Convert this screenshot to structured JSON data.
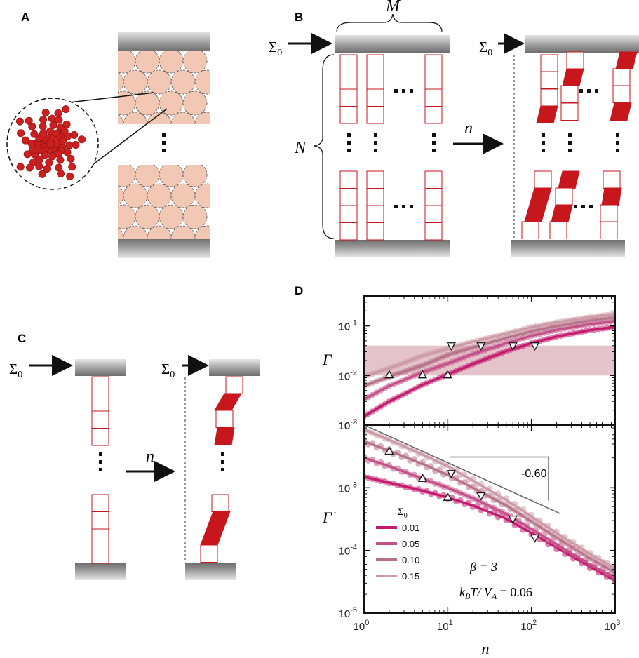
{
  "panels": {
    "A": {
      "letter": "A"
    },
    "B": {
      "letter": "B",
      "label_M": "M",
      "label_N": "N",
      "label_sigma": "Σ",
      "label_sigma_sub": "0",
      "label_n": "n",
      "dots": "···",
      "vdots": "⋮"
    },
    "C": {
      "letter": "C",
      "label_sigma": "Σ",
      "label_sigma_sub": "0",
      "label_n": "n",
      "vdots": "⋮"
    },
    "D": {
      "letter": "D"
    }
  },
  "colors": {
    "block_red": "#c8161d",
    "particle_fill": "#f2c7b3",
    "plate_dark": "#7a7a7a",
    "plate_light": "#e0e0e0",
    "band": "#d9a9b5",
    "series": [
      "#c21a6d",
      "#c45088",
      "#b77189",
      "#cc9aa6"
    ]
  },
  "chart_data": [
    {
      "type": "line",
      "panel": "D-top",
      "ylabel": "Γ",
      "xscale": "log",
      "yscale": "log",
      "xlim": [
        1,
        1000
      ],
      "ylim": [
        0.001,
        0.4
      ],
      "yticks": [
        {
          "base": "10",
          "exp": "-3"
        },
        {
          "base": "10",
          "exp": "-2"
        },
        {
          "base": "10",
          "exp": "-1"
        }
      ],
      "band": [
        0.01,
        0.04
      ],
      "series": [
        {
          "name": "0.01",
          "x": [
            1,
            2,
            5,
            10,
            20,
            50,
            100,
            200,
            500,
            1000
          ],
          "y": [
            0.0015,
            0.003,
            0.0065,
            0.0105,
            0.017,
            0.031,
            0.045,
            0.061,
            0.082,
            0.095
          ]
        },
        {
          "name": "0.05",
          "x": [
            1,
            2,
            5,
            10,
            20,
            50,
            100,
            200,
            500,
            1000
          ],
          "y": [
            0.0033,
            0.0062,
            0.0115,
            0.0175,
            0.027,
            0.045,
            0.063,
            0.083,
            0.108,
            0.125
          ]
        },
        {
          "name": "0.10",
          "x": [
            1,
            2,
            5,
            10,
            20,
            50,
            100,
            200,
            500,
            1000
          ],
          "y": [
            0.0062,
            0.0095,
            0.016,
            0.026,
            0.037,
            0.057,
            0.078,
            0.1,
            0.13,
            0.15
          ]
        },
        {
          "name": "0.15",
          "x": [
            1,
            2,
            5,
            10,
            20,
            50,
            100,
            200,
            500,
            1000
          ],
          "y": [
            0.0095,
            0.014,
            0.025,
            0.035,
            0.048,
            0.07,
            0.094,
            0.118,
            0.15,
            0.175
          ]
        }
      ],
      "markers_up": [
        {
          "x": 2,
          "y": 0.0102
        },
        {
          "x": 5,
          "y": 0.0102
        },
        {
          "x": 10,
          "y": 0.0102
        }
      ],
      "markers_down": [
        {
          "x": 11,
          "y": 0.04
        },
        {
          "x": 25,
          "y": 0.04
        },
        {
          "x": 60,
          "y": 0.04
        },
        {
          "x": 110,
          "y": 0.04
        }
      ]
    },
    {
      "type": "line",
      "panel": "D-bottom",
      "xlabel": "n",
      "ylabel": "Γ̇",
      "xscale": "log",
      "yscale": "log",
      "xlim": [
        1,
        1000
      ],
      "ylim": [
        1e-05,
        0.01
      ],
      "xticks": [
        {
          "base": "10",
          "exp": "0"
        },
        {
          "base": "10",
          "exp": "1"
        },
        {
          "base": "10",
          "exp": "2"
        },
        {
          "base": "10",
          "exp": "3"
        }
      ],
      "yticks": [
        {
          "base": "10",
          "exp": "-5"
        },
        {
          "base": "10",
          "exp": "-4"
        },
        {
          "base": "10",
          "exp": "-3"
        },
        {
          "base": "10",
          "exp": "-2"
        }
      ],
      "series": [
        {
          "name": "0.01",
          "x": [
            1,
            2,
            5,
            10,
            20,
            50,
            100,
            200,
            500,
            1000
          ],
          "y": [
            0.0015,
            0.0012,
            0.0009,
            0.0007,
            0.00052,
            0.00032,
            0.00019,
            0.00011,
            5.5e-05,
            3.3e-05
          ]
        },
        {
          "name": "0.05",
          "x": [
            1,
            2,
            5,
            10,
            20,
            50,
            100,
            200,
            500,
            1000
          ],
          "y": [
            0.003,
            0.0022,
            0.0014,
            0.001,
            0.00068,
            0.00038,
            0.00022,
            0.000125,
            6e-05,
            3.7e-05
          ]
        },
        {
          "name": "0.10",
          "x": [
            1,
            2,
            5,
            10,
            20,
            50,
            100,
            200,
            500,
            1000
          ],
          "y": [
            0.0055,
            0.0039,
            0.0024,
            0.0016,
            0.001,
            0.00052,
            0.00029,
            0.00016,
            7.5e-05,
            4.5e-05
          ]
        },
        {
          "name": "0.15",
          "x": [
            1,
            2,
            5,
            10,
            20,
            50,
            100,
            200,
            500,
            1000
          ],
          "y": [
            0.0085,
            0.0058,
            0.0034,
            0.0022,
            0.0013,
            0.00064,
            0.00035,
            0.00019,
            8.8e-05,
            5.2e-05
          ]
        }
      ],
      "markers_up": [
        {
          "x": 2,
          "y": 0.0038
        },
        {
          "x": 5,
          "y": 0.0014
        },
        {
          "x": 10,
          "y": 0.0007
        }
      ],
      "markers_down": [
        {
          "x": 11,
          "y": 0.0017
        },
        {
          "x": 25,
          "y": 0.00075
        },
        {
          "x": 60,
          "y": 0.00032
        },
        {
          "x": 110,
          "y": 0.00016
        }
      ],
      "slope_label": "-0.60",
      "legend_title": "Σ",
      "legend_title_sub": "0",
      "annotation_beta": "β = 3",
      "annotation_kt_main": "k",
      "annotation_kt_sub": "B",
      "annotation_kt_mid": "T/ V",
      "annotation_kt_sub2": "A",
      "annotation_kt_val": " = 0.06"
    }
  ]
}
